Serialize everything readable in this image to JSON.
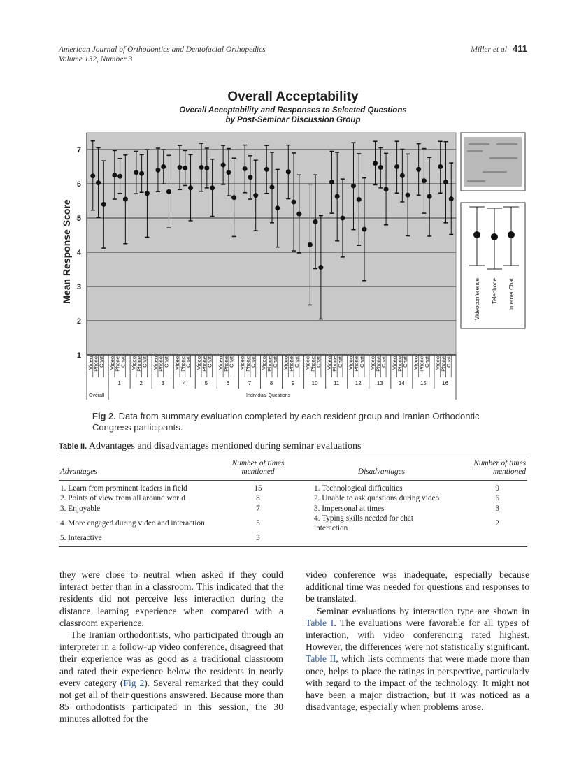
{
  "header": {
    "journal": "American Journal of Orthodontics and Dentofacial Orthopedics",
    "volume": "Volume 132, Number 3",
    "authors": "Miller et al",
    "page": "411"
  },
  "chart_data": {
    "type": "scatter",
    "subtype": "error-bar",
    "title": "Overall Acceptability",
    "subtitle_line1": "Overall Acceptability and Responses to Selected Questions",
    "subtitle_line2": "by Post-Seminar Discussion Group",
    "ylabel": "Mean Response Score",
    "xlabel": "Individual Questions",
    "ylim": [
      1,
      7.4
    ],
    "yticks": [
      "1",
      "2",
      "3",
      "4",
      "5",
      "6",
      "7"
    ],
    "grid": true,
    "background": "#c8c8c8",
    "categories": [
      "Overall",
      "1",
      "2",
      "3",
      "4",
      "5",
      "6",
      "7",
      "8",
      "9",
      "10",
      "11",
      "12",
      "13",
      "14",
      "15",
      "16"
    ],
    "overall_label": "Overall",
    "series": [
      {
        "name": "Video",
        "values": [
          6.23,
          6.25,
          6.33,
          6.4,
          6.48,
          6.48,
          6.55,
          6.44,
          6.42,
          6.35,
          4.22,
          6.05,
          5.94,
          6.6,
          6.5,
          6.42,
          6.5
        ],
        "low": [
          5.23,
          5.55,
          5.71,
          5.77,
          5.83,
          5.78,
          5.98,
          5.74,
          5.72,
          5.56,
          2.46,
          5.14,
          4.66,
          5.97,
          5.73,
          5.67,
          5.73
        ],
        "high": [
          7.25,
          6.97,
          6.95,
          7.04,
          7.12,
          7.18,
          7.12,
          7.13,
          7.12,
          7.13,
          5.99,
          6.95,
          7.2,
          7.24,
          7.24,
          7.17,
          7.24
        ]
      },
      {
        "name": "Phone",
        "values": [
          6.03,
          6.22,
          6.3,
          6.5,
          6.46,
          6.46,
          6.33,
          6.19,
          5.9,
          5.47,
          4.89,
          5.63,
          5.54,
          6.48,
          6.24,
          6.09,
          6.05
        ],
        "low": [
          5.02,
          5.72,
          5.75,
          6.0,
          5.95,
          5.88,
          5.65,
          5.55,
          4.86,
          4.04,
          3.52,
          4.33,
          4.2,
          5.88,
          5.47,
          5.14,
          4.86
        ],
        "high": [
          7.05,
          6.74,
          6.85,
          7.0,
          6.97,
          7.04,
          7.03,
          6.82,
          6.92,
          6.9,
          6.26,
          6.92,
          6.88,
          7.05,
          7.01,
          7.03,
          7.23
        ]
      },
      {
        "name": "Chat",
        "values": [
          5.4,
          5.55,
          5.72,
          5.77,
          5.88,
          5.88,
          5.6,
          5.66,
          5.29,
          5.12,
          3.56,
          5.0,
          4.67,
          5.84,
          5.67,
          5.63,
          5.56
        ],
        "low": [
          4.12,
          4.25,
          4.44,
          4.71,
          4.92,
          5.05,
          4.46,
          4.63,
          4.15,
          3.98,
          2.05,
          3.86,
          3.17,
          4.8,
          4.48,
          4.47,
          4.52
        ],
        "high": [
          6.67,
          6.84,
          7.0,
          6.83,
          6.85,
          6.72,
          6.75,
          6.69,
          6.42,
          6.26,
          5.07,
          6.14,
          6.17,
          6.89,
          6.87,
          6.77,
          6.61
        ]
      }
    ],
    "legend": {
      "placement": "right",
      "items": [
        "Videoconference",
        "Telephone",
        "Internet Chat"
      ]
    }
  },
  "figure": {
    "label": "Fig 2.",
    "caption": "Data from summary evaluation completed by each resident group and Iranian Orthodontic Congress participants."
  },
  "table": {
    "label": "Table II.",
    "title": "Advantages and disadvantages mentioned during seminar evaluations",
    "headers": [
      "Advantages",
      "Number of times mentioned",
      "Disadvantages",
      "Number of times mentioned"
    ],
    "rows": [
      [
        "1. Learn from prominent leaders in field",
        "15",
        "1. Technological difficulties",
        "9"
      ],
      [
        "2. Points of view from all around world",
        "8",
        "2. Unable to ask questions during video",
        "6"
      ],
      [
        "3. Enjoyable",
        "7",
        "3. Impersonal at times",
        "3"
      ],
      [
        "4. More engaged during video and interaction",
        "5",
        "4. Typing skills needed for chat interaction",
        "2"
      ],
      [
        "5. Interactive",
        "3",
        "",
        ""
      ]
    ]
  },
  "body": {
    "left_p1": "they were close to neutral when asked if they could interact better than in a classroom. This indicated that the residents did not perceive less interaction during the distance learning experience when compared with a classroom experience.",
    "left_p2_a": "The Iranian orthodontists, who participated through an interpreter in a follow-up video conference, disagreed that their experience was as good as a traditional classroom and rated their experience below the residents in nearly every category (",
    "left_p2_link": "Fig 2",
    "left_p2_b": "). Several remarked that they could not get all of their questions answered. Because more than 85 orthodontists participated in this session, the 30 minutes allotted for the",
    "right_p1": "video conference was inadequate, especially because additional time was needed for questions and responses to be translated.",
    "right_p2_a": "Seminar evaluations by interaction type are shown in ",
    "right_p2_link1": "Table I",
    "right_p2_b": ". The evaluations were favorable for all types of interaction, with video conferencing rated highest. However, the differences were not statistically significant. ",
    "right_p2_link2": "Table II",
    "right_p2_c": ", which lists comments that were made more than once, helps to place the ratings in perspective, particularly with regard to the impact of the technology. It might not have been a major distraction, but it was noticed as a disadvantage, especially when problems arose."
  }
}
